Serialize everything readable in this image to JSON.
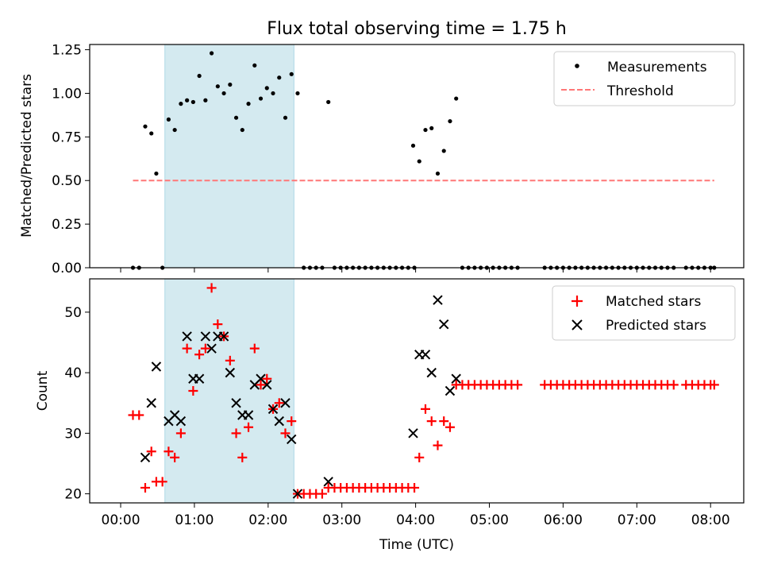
{
  "chart_data": [
    {
      "type": "scatter",
      "title": "Flux total observing time = 1.75 h",
      "xlabel": "",
      "ylabel": "Matched/Predicted stars",
      "xlim": [
        "00:00",
        "08:00"
      ],
      "ylim": [
        0,
        1.28
      ],
      "yticks": [
        "0.00",
        "0.25",
        "0.50",
        "0.75",
        "1.00",
        "1.25"
      ],
      "ytick_values": [
        0,
        0.25,
        0.5,
        0.75,
        1.0,
        1.25
      ],
      "shaded_interval": {
        "x_start": "00:36",
        "x_end": "02:21",
        "color": "#d4eaf0"
      },
      "legend_position": "top-right",
      "legend": [
        "Measurements",
        "Threshold"
      ],
      "threshold": {
        "name": "Threshold",
        "value": 0.5,
        "x_start": "00:10",
        "x_end": "08:03",
        "color": "#ff7777"
      },
      "measurements": {
        "name": "Measurements",
        "color": "#000000",
        "points": [
          [
            "00:10",
            0
          ],
          [
            "00:15",
            0
          ],
          [
            "00:20",
            0.81
          ],
          [
            "00:25",
            0.77
          ],
          [
            "00:29",
            0.54
          ],
          [
            "00:34",
            0
          ],
          [
            "00:39",
            0.85
          ],
          [
            "00:44",
            0.79
          ],
          [
            "00:49",
            0.94
          ],
          [
            "00:54",
            0.96
          ],
          [
            "00:59",
            0.95
          ],
          [
            "01:04",
            1.1
          ],
          [
            "01:09",
            0.96
          ],
          [
            "01:14",
            1.23
          ],
          [
            "01:19",
            1.04
          ],
          [
            "01:24",
            1.0
          ],
          [
            "01:29",
            1.05
          ],
          [
            "01:34",
            0.86
          ],
          [
            "01:39",
            0.79
          ],
          [
            "01:44",
            0.94
          ],
          [
            "01:49",
            1.16
          ],
          [
            "01:54",
            0.97
          ],
          [
            "01:59",
            1.03
          ],
          [
            "02:04",
            1.0
          ],
          [
            "02:09",
            1.09
          ],
          [
            "02:14",
            0.86
          ],
          [
            "02:19",
            1.11
          ],
          [
            "02:24",
            1.0
          ],
          [
            "02:29",
            0
          ],
          [
            "02:34",
            0
          ],
          [
            "02:39",
            0
          ],
          [
            "02:44",
            0
          ],
          [
            "02:49",
            0.95
          ],
          [
            "02:54",
            0
          ],
          [
            "02:59",
            0
          ],
          [
            "03:04",
            0
          ],
          [
            "03:09",
            0
          ],
          [
            "03:14",
            0
          ],
          [
            "03:19",
            0
          ],
          [
            "03:24",
            0
          ],
          [
            "03:29",
            0
          ],
          [
            "03:34",
            0
          ],
          [
            "03:39",
            0
          ],
          [
            "03:44",
            0
          ],
          [
            "03:49",
            0
          ],
          [
            "03:54",
            0
          ],
          [
            "03:59",
            0
          ],
          [
            "03:58",
            0.7
          ],
          [
            "04:03",
            0.61
          ],
          [
            "04:08",
            0.79
          ],
          [
            "04:13",
            0.8
          ],
          [
            "04:18",
            0.54
          ],
          [
            "04:23",
            0.67
          ],
          [
            "04:28",
            0.84
          ],
          [
            "04:33",
            0.97
          ],
          [
            "04:38",
            0
          ],
          [
            "04:43",
            0
          ],
          [
            "04:48",
            0
          ],
          [
            "04:53",
            0
          ],
          [
            "04:58",
            0
          ],
          [
            "05:03",
            0
          ],
          [
            "05:08",
            0
          ],
          [
            "05:13",
            0
          ],
          [
            "05:18",
            0
          ],
          [
            "05:23",
            0
          ],
          [
            "05:45",
            0
          ],
          [
            "05:50",
            0
          ],
          [
            "05:55",
            0
          ],
          [
            "06:00",
            0
          ],
          [
            "06:05",
            0
          ],
          [
            "06:10",
            0
          ],
          [
            "06:15",
            0
          ],
          [
            "06:20",
            0
          ],
          [
            "06:25",
            0
          ],
          [
            "06:30",
            0
          ],
          [
            "06:35",
            0
          ],
          [
            "06:40",
            0
          ],
          [
            "06:45",
            0
          ],
          [
            "06:50",
            0
          ],
          [
            "06:55",
            0
          ],
          [
            "07:00",
            0
          ],
          [
            "07:05",
            0
          ],
          [
            "07:10",
            0
          ],
          [
            "07:15",
            0
          ],
          [
            "07:20",
            0
          ],
          [
            "07:25",
            0
          ],
          [
            "07:30",
            0
          ],
          [
            "07:40",
            0
          ],
          [
            "07:45",
            0
          ],
          [
            "07:50",
            0
          ],
          [
            "07:55",
            0
          ],
          [
            "08:00",
            0
          ],
          [
            "08:03",
            0
          ]
        ]
      }
    },
    {
      "type": "scatter",
      "title": "",
      "xlabel": "Time (UTC)",
      "ylabel": "Count",
      "xlim": [
        "00:00",
        "08:00"
      ],
      "xticks": [
        "00:00",
        "01:00",
        "02:00",
        "03:00",
        "04:00",
        "05:00",
        "06:00",
        "07:00",
        "08:00"
      ],
      "ylim": [
        18.5,
        55.5
      ],
      "yticks": [
        "20",
        "30",
        "40",
        "50"
      ],
      "ytick_values": [
        20,
        30,
        40,
        50
      ],
      "shaded_interval": {
        "x_start": "00:36",
        "x_end": "02:21",
        "color": "#d4eaf0"
      },
      "legend_position": "top-right",
      "legend": [
        "Matched stars",
        "Predicted stars"
      ],
      "series": [
        {
          "name": "Matched stars",
          "marker": "+",
          "color": "#ff0000",
          "points": [
            [
              "00:10",
              33
            ],
            [
              "00:15",
              33
            ],
            [
              "00:20",
              21
            ],
            [
              "00:25",
              27
            ],
            [
              "00:29",
              22
            ],
            [
              "00:34",
              22
            ],
            [
              "00:39",
              27
            ],
            [
              "00:44",
              26
            ],
            [
              "00:49",
              30
            ],
            [
              "00:54",
              44
            ],
            [
              "00:59",
              37
            ],
            [
              "01:04",
              43
            ],
            [
              "01:09",
              44
            ],
            [
              "01:14",
              54
            ],
            [
              "01:19",
              48
            ],
            [
              "01:24",
              46
            ],
            [
              "01:29",
              42
            ],
            [
              "01:34",
              30
            ],
            [
              "01:39",
              26
            ],
            [
              "01:44",
              31
            ],
            [
              "01:49",
              44
            ],
            [
              "01:54",
              38
            ],
            [
              "01:59",
              39
            ],
            [
              "02:04",
              34
            ],
            [
              "02:09",
              35
            ],
            [
              "02:14",
              30
            ],
            [
              "02:19",
              32
            ],
            [
              "02:24",
              20
            ],
            [
              "02:29",
              20
            ],
            [
              "02:34",
              20
            ],
            [
              "02:39",
              20
            ],
            [
              "02:44",
              20
            ],
            [
              "02:49",
              21
            ],
            [
              "02:54",
              21
            ],
            [
              "02:59",
              21
            ],
            [
              "03:04",
              21
            ],
            [
              "03:09",
              21
            ],
            [
              "03:14",
              21
            ],
            [
              "03:19",
              21
            ],
            [
              "03:24",
              21
            ],
            [
              "03:29",
              21
            ],
            [
              "03:34",
              21
            ],
            [
              "03:39",
              21
            ],
            [
              "03:44",
              21
            ],
            [
              "03:49",
              21
            ],
            [
              "03:54",
              21
            ],
            [
              "03:59",
              21
            ],
            [
              "04:03",
              26
            ],
            [
              "04:08",
              34
            ],
            [
              "04:13",
              32
            ],
            [
              "04:18",
              28
            ],
            [
              "04:23",
              32
            ],
            [
              "04:28",
              31
            ],
            [
              "04:33",
              38
            ],
            [
              "04:38",
              38
            ],
            [
              "04:43",
              38
            ],
            [
              "04:48",
              38
            ],
            [
              "04:53",
              38
            ],
            [
              "04:58",
              38
            ],
            [
              "05:03",
              38
            ],
            [
              "05:08",
              38
            ],
            [
              "05:13",
              38
            ],
            [
              "05:18",
              38
            ],
            [
              "05:23",
              38
            ],
            [
              "05:45",
              38
            ],
            [
              "05:50",
              38
            ],
            [
              "05:55",
              38
            ],
            [
              "06:00",
              38
            ],
            [
              "06:05",
              38
            ],
            [
              "06:10",
              38
            ],
            [
              "06:15",
              38
            ],
            [
              "06:20",
              38
            ],
            [
              "06:25",
              38
            ],
            [
              "06:30",
              38
            ],
            [
              "06:35",
              38
            ],
            [
              "06:40",
              38
            ],
            [
              "06:45",
              38
            ],
            [
              "06:50",
              38
            ],
            [
              "06:55",
              38
            ],
            [
              "07:00",
              38
            ],
            [
              "07:05",
              38
            ],
            [
              "07:10",
              38
            ],
            [
              "07:15",
              38
            ],
            [
              "07:20",
              38
            ],
            [
              "07:25",
              38
            ],
            [
              "07:30",
              38
            ],
            [
              "07:40",
              38
            ],
            [
              "07:45",
              38
            ],
            [
              "07:50",
              38
            ],
            [
              "07:55",
              38
            ],
            [
              "08:00",
              38
            ],
            [
              "08:03",
              38
            ]
          ]
        },
        {
          "name": "Predicted stars",
          "marker": "x",
          "color": "#000000",
          "points": [
            [
              "00:20",
              26
            ],
            [
              "00:25",
              35
            ],
            [
              "00:29",
              41
            ],
            [
              "00:39",
              32
            ],
            [
              "00:44",
              33
            ],
            [
              "00:49",
              32
            ],
            [
              "00:54",
              46
            ],
            [
              "00:59",
              39
            ],
            [
              "01:04",
              39
            ],
            [
              "01:09",
              46
            ],
            [
              "01:14",
              44
            ],
            [
              "01:19",
              46
            ],
            [
              "01:24",
              46
            ],
            [
              "01:29",
              40
            ],
            [
              "01:34",
              35
            ],
            [
              "01:39",
              33
            ],
            [
              "01:44",
              33
            ],
            [
              "01:49",
              38
            ],
            [
              "01:54",
              39
            ],
            [
              "01:59",
              38
            ],
            [
              "02:04",
              34
            ],
            [
              "02:09",
              32
            ],
            [
              "02:14",
              35
            ],
            [
              "02:19",
              29
            ],
            [
              "02:24",
              20
            ],
            [
              "02:49",
              22
            ],
            [
              "03:58",
              30
            ],
            [
              "04:03",
              43
            ],
            [
              "04:08",
              43
            ],
            [
              "04:13",
              40
            ],
            [
              "04:18",
              52
            ],
            [
              "04:23",
              48
            ],
            [
              "04:28",
              37
            ],
            [
              "04:33",
              39
            ]
          ]
        }
      ]
    }
  ]
}
